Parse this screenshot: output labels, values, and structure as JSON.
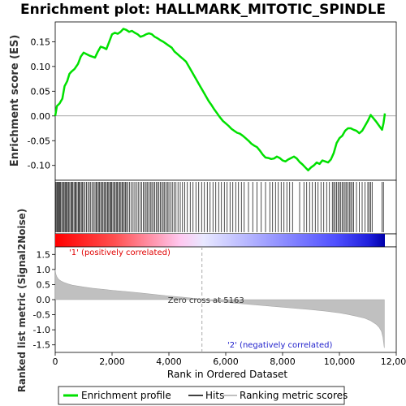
{
  "chart_data": {
    "type": "line",
    "title": "Enrichment plot: HALLMARK_MITOTIC_SPINDLE",
    "xlabel": "Rank in Ordered Dataset",
    "top_panel": {
      "ylabel": "Enrichment score (ES)",
      "ylim": [
        -0.13,
        0.19
      ],
      "yticks": [
        "0.15",
        "0.10",
        "0.05",
        "0.00",
        "-0.05",
        "-0.10"
      ],
      "ytick_values": [
        0.15,
        0.1,
        0.05,
        0.0,
        -0.05,
        -0.1
      ],
      "series": [
        {
          "name": "Enrichment profile",
          "color": "#00e000",
          "x": [
            0,
            60,
            150,
            250,
            330,
            420,
            500,
            580,
            680,
            800,
            900,
            1000,
            1100,
            1200,
            1300,
            1400,
            1500,
            1600,
            1700,
            1800,
            1900,
            2000,
            2100,
            2200,
            2300,
            2400,
            2500,
            2600,
            2700,
            2800,
            2900,
            3000,
            3100,
            3200,
            3300,
            3400,
            3500,
            3600,
            3700,
            3800,
            3900,
            4000,
            4100,
            4200,
            4300,
            4400,
            4500,
            4600,
            4700,
            4800,
            4900,
            5000,
            5100,
            5200,
            5300,
            5400,
            5500,
            5600,
            5700,
            5800,
            5900,
            6000,
            6100,
            6200,
            6300,
            6400,
            6500,
            6600,
            6700,
            6800,
            6900,
            7000,
            7100,
            7200,
            7300,
            7400,
            7500,
            7600,
            7700,
            7800,
            7900,
            8000,
            8100,
            8200,
            8300,
            8400,
            8500,
            8600,
            8700,
            8800,
            8900,
            9000,
            9100,
            9200,
            9300,
            9400,
            9500,
            9600,
            9700,
            9800,
            9900,
            10000,
            10100,
            10200,
            10300,
            10400,
            10500,
            10600,
            10700,
            10800,
            10900,
            11000,
            11100,
            11200,
            11300,
            11400,
            11500,
            11550,
            11600
          ],
          "y": [
            0.0,
            0.02,
            0.025,
            0.035,
            0.06,
            0.07,
            0.085,
            0.09,
            0.095,
            0.105,
            0.12,
            0.128,
            0.125,
            0.122,
            0.12,
            0.118,
            0.13,
            0.14,
            0.138,
            0.135,
            0.15,
            0.165,
            0.168,
            0.166,
            0.17,
            0.176,
            0.174,
            0.17,
            0.172,
            0.168,
            0.165,
            0.16,
            0.162,
            0.165,
            0.167,
            0.165,
            0.16,
            0.157,
            0.153,
            0.15,
            0.146,
            0.142,
            0.138,
            0.13,
            0.125,
            0.12,
            0.115,
            0.11,
            0.1,
            0.09,
            0.08,
            0.07,
            0.06,
            0.05,
            0.04,
            0.03,
            0.022,
            0.013,
            0.005,
            -0.003,
            -0.01,
            -0.015,
            -0.02,
            -0.026,
            -0.03,
            -0.034,
            -0.036,
            -0.04,
            -0.045,
            -0.05,
            -0.056,
            -0.06,
            -0.063,
            -0.07,
            -0.078,
            -0.084,
            -0.085,
            -0.087,
            -0.086,
            -0.082,
            -0.085,
            -0.09,
            -0.092,
            -0.088,
            -0.085,
            -0.082,
            -0.086,
            -0.093,
            -0.098,
            -0.104,
            -0.11,
            -0.104,
            -0.1,
            -0.094,
            -0.097,
            -0.09,
            -0.092,
            -0.094,
            -0.088,
            -0.075,
            -0.055,
            -0.045,
            -0.04,
            -0.03,
            -0.025,
            -0.025,
            -0.028,
            -0.03,
            -0.035,
            -0.03,
            -0.02,
            -0.01,
            0.002,
            -0.005,
            -0.012,
            -0.02,
            -0.028,
            -0.015,
            0.005
          ]
        }
      ]
    },
    "bottom_panel": {
      "ylabel": "Ranked list metric (Signal2Noise)",
      "ylim": [
        -1.75,
        1.75
      ],
      "yticks": [
        "1.5",
        "1.0",
        "0.5",
        "0.0",
        "-0.5",
        "-1.0",
        "-1.5"
      ],
      "ytick_values": [
        1.5,
        1.0,
        0.5,
        0.0,
        -0.5,
        -1.0,
        -1.5
      ],
      "metric_x": [
        0,
        20,
        60,
        120,
        200,
        300,
        450,
        600,
        800,
        1000,
        1300,
        1600,
        2000,
        2500,
        3000,
        3500,
        4000,
        4500,
        5000,
        5163,
        5500,
        6000,
        6500,
        7000,
        7500,
        8000,
        8500,
        9000,
        9500,
        10000,
        10300,
        10600,
        10900,
        11100,
        11300,
        11400,
        11480,
        11530,
        11560,
        11580
      ],
      "metric_y": [
        1.0,
        0.85,
        0.75,
        0.67,
        0.62,
        0.57,
        0.52,
        0.48,
        0.45,
        0.42,
        0.38,
        0.35,
        0.31,
        0.27,
        0.22,
        0.17,
        0.12,
        0.08,
        0.03,
        0.0,
        -0.04,
        -0.09,
        -0.13,
        -0.17,
        -0.21,
        -0.25,
        -0.29,
        -0.33,
        -0.38,
        -0.44,
        -0.49,
        -0.55,
        -0.62,
        -0.7,
        -0.82,
        -0.92,
        -1.05,
        -1.25,
        -1.45,
        -1.6
      ],
      "zero_cross_label": "Zero cross at 5163",
      "zero_cross": 5163,
      "pos_label": "'1' (positively correlated)",
      "neg_label": "'2' (negatively correlated)"
    },
    "xlim": [
      0,
      12000
    ],
    "xticks": [
      "0",
      "2,000",
      "4,000",
      "6,000",
      "8,000",
      "10,000",
      "12,000"
    ],
    "xtick_values": [
      0,
      2000,
      4000,
      6000,
      8000,
      10000,
      12000
    ],
    "dataset_size": 11600,
    "hits": [
      12,
      35,
      70,
      95,
      130,
      160,
      190,
      230,
      260,
      300,
      340,
      370,
      400,
      430,
      470,
      510,
      550,
      590,
      620,
      660,
      700,
      730,
      770,
      810,
      840,
      880,
      920,
      960,
      1000,
      1050,
      1100,
      1150,
      1200,
      1250,
      1300,
      1350,
      1400,
      1440,
      1480,
      1520,
      1560,
      1600,
      1640,
      1680,
      1720,
      1760,
      1800,
      1840,
      1880,
      1920,
      1950,
      1990,
      2030,
      2070,
      2110,
      2150,
      2190,
      2230,
      2270,
      2310,
      2350,
      2390,
      2430,
      2470,
      2510,
      2560,
      2620,
      2680,
      2740,
      2800,
      2860,
      2920,
      2980,
      3040,
      3100,
      3150,
      3200,
      3250,
      3300,
      3350,
      3400,
      3450,
      3500,
      3550,
      3600,
      3650,
      3700,
      3750,
      3800,
      3850,
      3900,
      3950,
      4000,
      4060,
      4120,
      4180,
      4250,
      4320,
      4400,
      4480,
      4560,
      4650,
      4750,
      4850,
      4950,
      5050,
      5150,
      5250,
      5350,
      5450,
      5550,
      5650,
      5750,
      5850,
      5950,
      6050,
      6150,
      6250,
      6350,
      6450,
      6550,
      6650,
      6800,
      6950,
      7100,
      7250,
      7400,
      7550,
      7650,
      7750,
      7850,
      7950,
      8050,
      8150,
      8250,
      8350,
      8600,
      8750,
      8850,
      8950,
      9050,
      9150,
      9250,
      9350,
      9450,
      9550,
      9650,
      9750,
      9800,
      9850,
      9900,
      9950,
      10000,
      10050,
      10100,
      10150,
      10200,
      10250,
      10300,
      10350,
      10400,
      10450,
      10500,
      10600,
      10700,
      10800,
      10900,
      11000,
      11050,
      11100,
      11150,
      11500,
      11550
    ],
    "legend": [
      "Enrichment profile",
      "Hits",
      "Ranking metric scores"
    ],
    "colors": {
      "profile": "#00e000",
      "hits": "#000000",
      "metric_fill": "#c0c0c0",
      "pos_text": "#e00000",
      "neg_text": "#2020cc"
    }
  }
}
